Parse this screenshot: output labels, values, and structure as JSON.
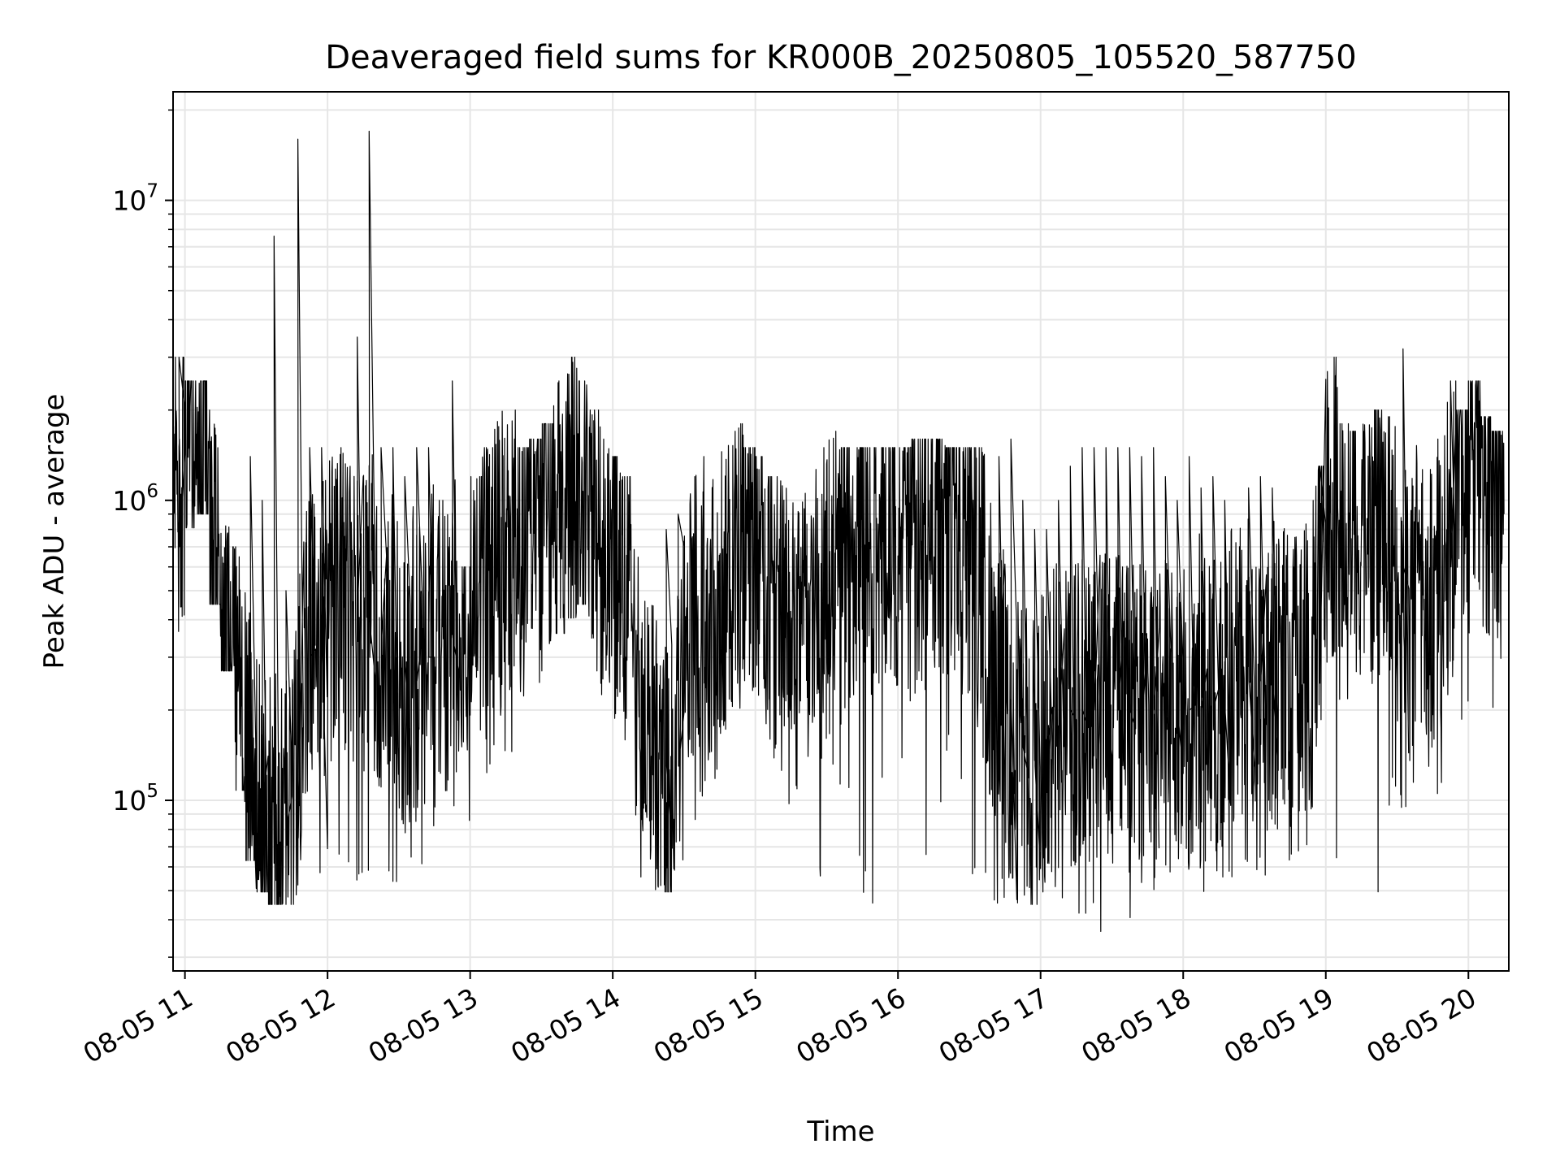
{
  "chart_data": {
    "type": "line",
    "title": "Deaveraged field sums for KR000B_20250805_105520_587750",
    "xlabel": "Time",
    "ylabel": "Peak ADU - average",
    "yscale": "log",
    "ylim": [
      27000,
      23000000
    ],
    "xlim": [
      "2025-08-05 10:55",
      "2025-08-05 20:17"
    ],
    "grid": true,
    "line_color": "#000000",
    "x_ticks": [
      {
        "at": "2025-08-05 11:00",
        "label": "08-05 11"
      },
      {
        "at": "2025-08-05 12:00",
        "label": "08-05 12"
      },
      {
        "at": "2025-08-05 13:00",
        "label": "08-05 13"
      },
      {
        "at": "2025-08-05 14:00",
        "label": "08-05 14"
      },
      {
        "at": "2025-08-05 15:00",
        "label": "08-05 15"
      },
      {
        "at": "2025-08-05 16:00",
        "label": "08-05 16"
      },
      {
        "at": "2025-08-05 17:00",
        "label": "08-05 17"
      },
      {
        "at": "2025-08-05 18:00",
        "label": "08-05 18"
      },
      {
        "at": "2025-08-05 19:00",
        "label": "08-05 19"
      },
      {
        "at": "2025-08-05 20:00",
        "label": "08-05 20"
      }
    ],
    "y_ticks": [
      {
        "value": 100000,
        "base": "10",
        "exp": "5"
      },
      {
        "value": 1000000,
        "base": "10",
        "exp": "6"
      },
      {
        "value": 10000000,
        "base": "10",
        "exp": "7"
      }
    ],
    "series": [
      {
        "x": [
          "2025-08-05 10:55",
          "2025-08-05 11:00",
          "2025-08-05 11:05",
          "2025-08-05 11:10",
          "2025-08-05 11:15",
          "2025-08-05 11:20",
          "2025-08-05 11:25",
          "2025-08-05 11:30",
          "2025-08-05 11:35",
          "2025-08-05 11:40",
          "2025-08-05 11:45",
          "2025-08-05 11:50",
          "2025-08-05 11:55",
          "2025-08-05 12:00",
          "2025-08-05 12:05",
          "2025-08-05 12:10",
          "2025-08-05 12:15",
          "2025-08-05 12:20",
          "2025-08-05 12:25",
          "2025-08-05 12:30",
          "2025-08-05 12:35",
          "2025-08-05 12:40",
          "2025-08-05 12:45",
          "2025-08-05 12:50",
          "2025-08-05 12:55",
          "2025-08-05 13:00",
          "2025-08-05 13:05",
          "2025-08-05 13:10",
          "2025-08-05 13:15",
          "2025-08-05 13:20",
          "2025-08-05 13:25",
          "2025-08-05 13:30",
          "2025-08-05 13:35",
          "2025-08-05 13:40",
          "2025-08-05 13:45",
          "2025-08-05 13:50",
          "2025-08-05 13:55",
          "2025-08-05 14:00",
          "2025-08-05 14:05",
          "2025-08-05 14:10",
          "2025-08-05 14:15",
          "2025-08-05 14:20",
          "2025-08-05 14:25",
          "2025-08-05 14:30",
          "2025-08-05 14:35",
          "2025-08-05 14:40",
          "2025-08-05 14:45",
          "2025-08-05 14:50",
          "2025-08-05 14:55",
          "2025-08-05 15:00",
          "2025-08-05 15:05",
          "2025-08-05 15:10",
          "2025-08-05 15:15",
          "2025-08-05 15:20",
          "2025-08-05 15:25",
          "2025-08-05 15:30",
          "2025-08-05 15:35",
          "2025-08-05 15:40",
          "2025-08-05 15:45",
          "2025-08-05 15:50",
          "2025-08-05 15:55",
          "2025-08-05 16:00",
          "2025-08-05 16:05",
          "2025-08-05 16:10",
          "2025-08-05 16:15",
          "2025-08-05 16:20",
          "2025-08-05 16:25",
          "2025-08-05 16:30",
          "2025-08-05 16:35",
          "2025-08-05 16:40",
          "2025-08-05 16:45",
          "2025-08-05 16:50",
          "2025-08-05 16:55",
          "2025-08-05 17:00",
          "2025-08-05 17:05",
          "2025-08-05 17:10",
          "2025-08-05 17:15",
          "2025-08-05 17:20",
          "2025-08-05 17:25",
          "2025-08-05 17:30",
          "2025-08-05 17:35",
          "2025-08-05 17:40",
          "2025-08-05 17:45",
          "2025-08-05 17:50",
          "2025-08-05 17:55",
          "2025-08-05 18:00",
          "2025-08-05 18:05",
          "2025-08-05 18:10",
          "2025-08-05 18:15",
          "2025-08-05 18:20",
          "2025-08-05 18:25",
          "2025-08-05 18:30",
          "2025-08-05 18:35",
          "2025-08-05 18:40",
          "2025-08-05 18:45",
          "2025-08-05 18:50",
          "2025-08-05 18:55",
          "2025-08-05 19:00",
          "2025-08-05 19:05",
          "2025-08-05 19:10",
          "2025-08-05 19:15",
          "2025-08-05 19:20",
          "2025-08-05 19:25",
          "2025-08-05 19:30",
          "2025-08-05 19:35",
          "2025-08-05 19:40",
          "2025-08-05 19:45",
          "2025-08-05 19:50",
          "2025-08-05 19:55",
          "2025-08-05 20:00",
          "2025-08-05 20:05",
          "2025-08-05 20:10",
          "2025-08-05 20:15"
        ],
        "y_mid": [
          700000,
          1400000,
          1500000,
          900000,
          450000,
          300000,
          180000,
          100000,
          85000,
          80000,
          75000,
          300000,
          350000,
          400000,
          500000,
          450000,
          400000,
          350000,
          300000,
          280000,
          250000,
          300000,
          350000,
          350000,
          350000,
          450000,
          500000,
          600000,
          650000,
          700000,
          750000,
          800000,
          850000,
          900000,
          950000,
          800000,
          700000,
          600000,
          500000,
          300000,
          200000,
          130000,
          130000,
          300000,
          400000,
          450000,
          500000,
          600000,
          650000,
          700000,
          500000,
          400000,
          300000,
          300000,
          400000,
          500000,
          550000,
          600000,
          700000,
          750000,
          800000,
          800000,
          700000,
          750000,
          800000,
          800000,
          750000,
          700000,
          500000,
          300000,
          200000,
          150000,
          130000,
          150000,
          180000,
          200000,
          200000,
          200000,
          200000,
          200000,
          200000,
          180000,
          200000,
          200000,
          200000,
          200000,
          200000,
          200000,
          200000,
          250000,
          250000,
          250000,
          250000,
          250000,
          250000,
          300000,
          300000,
          800000,
          1000000,
          900000,
          800000,
          800000,
          900000,
          600000,
          450000,
          400000,
          400000,
          600000,
          1000000,
          1200000,
          1200000,
          1100000,
          900000
        ],
        "y_low": [
          300000,
          900000,
          1000000,
          500000,
          300000,
          120000,
          70000,
          55000,
          50000,
          50000,
          50000,
          55000,
          55000,
          70000,
          60000,
          60000,
          55000,
          60000,
          50000,
          80000,
          60000,
          70000,
          80000,
          80000,
          80000,
          100000,
          130000,
          130000,
          150000,
          180000,
          200000,
          300000,
          400000,
          450000,
          500000,
          300000,
          250000,
          200000,
          80000,
          60000,
          55000,
          55000,
          65000,
          80000,
          100000,
          130000,
          180000,
          180000,
          200000,
          200000,
          150000,
          100000,
          60000,
          50000,
          60000,
          130000,
          100000,
          60000,
          50000,
          100000,
          150000,
          150000,
          55000,
          60000,
          100000,
          150000,
          100000,
          60000,
          60000,
          50000,
          45000,
          45000,
          50000,
          55000,
          50000,
          50000,
          45000,
          40000,
          40000,
          40000,
          38000,
          55000,
          55000,
          55000,
          60000,
          60000,
          55000,
          55000,
          50000,
          50000,
          55000,
          60000,
          55000,
          60000,
          70000,
          60000,
          60000,
          60000,
          200000,
          200000,
          55000,
          55000,
          100000,
          100000,
          100000,
          100000,
          100000,
          100000,
          200000,
          300000,
          300000,
          200000,
          120000
        ],
        "y_high": [
          3000000,
          2500000,
          2500000,
          2000000,
          900000,
          700000,
          1400000,
          1000000,
          7600000,
          500000,
          16000000,
          1500000,
          1500000,
          1500000,
          1500000,
          3500000,
          17000000,
          1500000,
          1500000,
          1200000,
          1500000,
          1500000,
          1000000,
          2500000,
          600000,
          1200000,
          1500000,
          2000000,
          2000000,
          1500000,
          1600000,
          1800000,
          2500000,
          3000000,
          2500000,
          2000000,
          1600000,
          1400000,
          1200000,
          900000,
          800000,
          800000,
          900000,
          1200000,
          1400000,
          1700000,
          2000000,
          1800000,
          1500000,
          1400000,
          1200000,
          1300000,
          1200000,
          1200000,
          1500000,
          1700000,
          1500000,
          1500000,
          1500000,
          1500000,
          1500000,
          1500000,
          1600000,
          1600000,
          1600000,
          1500000,
          1500000,
          1500000,
          1500000,
          1400000,
          1600000,
          1000000,
          800000,
          800000,
          1000000,
          1300000,
          1500000,
          1500000,
          1500000,
          1500000,
          1500000,
          1400000,
          1500000,
          1200000,
          1000000,
          1400000,
          1100000,
          1200000,
          1000000,
          1000000,
          1100000,
          1200000,
          1100000,
          1000000,
          1000000,
          1000000,
          1300000,
          3000000,
          1800000,
          1700000,
          1900000,
          2000000,
          1900000,
          3200000,
          1800000,
          1500000,
          1600000,
          2500000,
          2000000,
          2500000,
          1900000,
          1700000,
          1700000
        ]
      }
    ]
  }
}
